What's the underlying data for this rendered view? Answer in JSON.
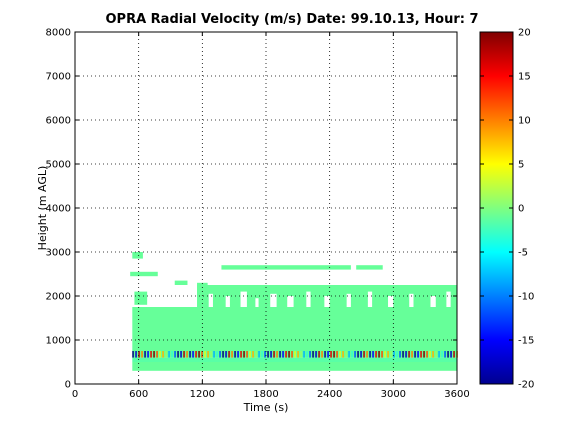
{
  "chart_data": {
    "type": "heatmap",
    "title": "OPRA Radial Velocity (m/s)  Date: 99.10.13, Hour: 7",
    "xlabel": "Time (s)",
    "ylabel": "Height (m AGL)",
    "xlim": [
      0,
      3600
    ],
    "ylim": [
      0,
      8000
    ],
    "x_ticks": [
      "0",
      "600",
      "1200",
      "1800",
      "2400",
      "3000",
      "3600"
    ],
    "y_ticks": [
      "0",
      "1000",
      "2000",
      "3000",
      "4000",
      "5000",
      "6000",
      "7000",
      "8000"
    ],
    "grid": true,
    "colorbar": {
      "range": [
        -20,
        20
      ],
      "ticks": [
        "20",
        "15",
        "10",
        "5",
        "0",
        "-5",
        "-10",
        "-15",
        "-20"
      ],
      "colormap": "jet"
    },
    "background_value": -1,
    "data_extent": {
      "time": [
        540,
        3600
      ],
      "height": [
        300,
        3000
      ]
    },
    "regions": [
      {
        "x": [
          540,
          3600
        ],
        "y": [
          300,
          500
        ],
        "value": -1
      },
      {
        "x": [
          540,
          3600
        ],
        "y": [
          500,
          600
        ],
        "value": -1.5
      },
      {
        "x": [
          540,
          3600
        ],
        "y": [
          600,
          750
        ],
        "value": "variable (-20 to 20)"
      },
      {
        "x": [
          540,
          3600
        ],
        "y": [
          750,
          1500
        ],
        "value": -1
      },
      {
        "x": [
          540,
          3600
        ],
        "y": [
          1500,
          1750
        ],
        "value": -1
      },
      {
        "x": [
          1150,
          3600
        ],
        "y": [
          1750,
          2250
        ],
        "value": -1
      },
      {
        "x": [
          560,
          680
        ],
        "y": [
          1800,
          2100
        ],
        "value": -1
      },
      {
        "x": [
          520,
          780
        ],
        "y": [
          2450,
          2550
        ],
        "value": -1
      },
      {
        "x": [
          540,
          640
        ],
        "y": [
          2850,
          3000
        ],
        "value": -1
      },
      {
        "x": [
          940,
          1060
        ],
        "y": [
          2250,
          2350
        ],
        "value": -1
      },
      {
        "x": [
          1150,
          1250
        ],
        "y": [
          2000,
          2300
        ],
        "value": -1
      },
      {
        "x": [
          1380,
          2600
        ],
        "y": [
          2600,
          2700
        ],
        "value": -1
      },
      {
        "x": [
          2650,
          2900
        ],
        "y": [
          2600,
          2700
        ],
        "value": -1
      }
    ]
  }
}
